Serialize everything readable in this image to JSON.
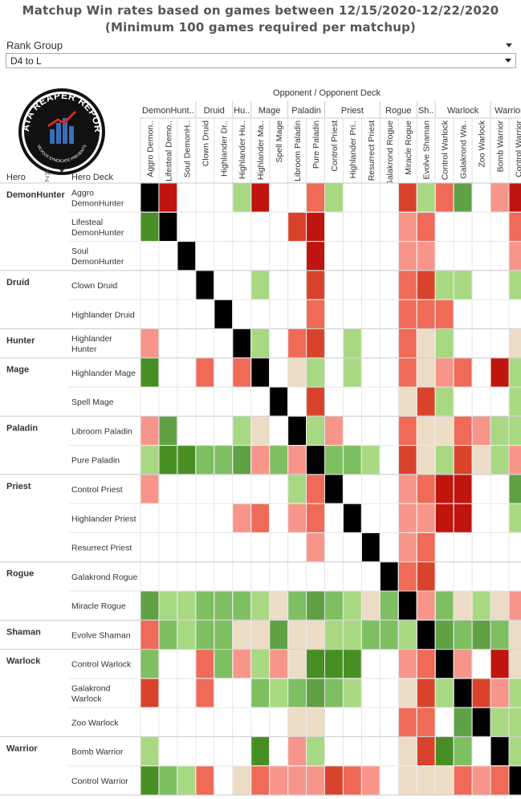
{
  "title_line1": "Matchup Win rates based on games between 12/15/2020-12/22/2020",
  "title_line2": "(Minimum 100 games required per matchup)",
  "rank_group": {
    "label": "Rank Group",
    "value": "D4 to L"
  },
  "logo": {
    "text": "DATA REAPER REPORT",
    "subtext": "VICIOUS SYNDICATE PRESENTS"
  },
  "opponent_title": "Opponent  /  Opponent Deck",
  "row_header_hero": "Hero",
  "row_header_deck": "Hero Deck",
  "sort_icon": "sort-descending-icon",
  "colors": {
    "black": "#000000",
    "strong_loss": "#c0140e",
    "loss": "#d9432c",
    "mild_loss": "#ef6a57",
    "slight_loss": "#f8958a",
    "even": "#ecdcc6",
    "slight_win": "#a9d883",
    "win": "#7ebf62",
    "strong_win": "#5fa144",
    "strongest_win": "#488f23"
  },
  "chart_data": {
    "type": "heatmap",
    "title": "Matchup Win rates based on games between 12/15/2020-12/22/2020 (Minimum 100 games required per matchup)",
    "col_group_label": "Opponent / Opponent Deck",
    "row_group_label": "Hero / Hero Deck",
    "col_groups": [
      {
        "name": "DemonHunt..",
        "span": 3
      },
      {
        "name": "Druid",
        "span": 2
      },
      {
        "name": "Hu..",
        "span": 1
      },
      {
        "name": "Mage",
        "span": 2
      },
      {
        "name": "Paladin",
        "span": 2
      },
      {
        "name": "Priest",
        "span": 3
      },
      {
        "name": "Rogue",
        "span": 2
      },
      {
        "name": "Sh..",
        "span": 1
      },
      {
        "name": "Warlock",
        "span": 3
      },
      {
        "name": "Warrior",
        "span": 2
      }
    ],
    "columns": [
      "Aggro Demon..",
      "Lifesteal Demo..",
      "Soul DemonH..",
      "Clown Druid",
      "Highlander Dr..",
      "Highlander Hu..",
      "Highlander Ma..",
      "Spell Mage",
      "Libroom Paladin",
      "Pure Paladin",
      "Control Priest",
      "Highlander Pri..",
      "Resurrect Priest",
      "Galakrond Rogue",
      "Miracle Rogue",
      "Evolve Shaman",
      "Control Warlock",
      "Galakrond Wa..",
      "Zoo Warlock",
      "Bomb Warrior",
      "Control Warrior"
    ],
    "row_groups": [
      {
        "name": "DemonHunter",
        "rows": [
          {
            "label": "Aggro DemonHunter",
            "lines": [
              "Aggro",
              "DemonHunter"
            ]
          },
          {
            "label": "Lifesteal DemonHunter",
            "lines": [
              "Lifesteal",
              "DemonHunter"
            ]
          },
          {
            "label": "Soul DemonHunter",
            "lines": [
              "Soul",
              "DemonHunter"
            ]
          }
        ]
      },
      {
        "name": "Druid",
        "rows": [
          {
            "label": "Clown Druid",
            "lines": [
              "Clown Druid"
            ]
          },
          {
            "label": "Highlander Druid",
            "lines": [
              "Highlander Druid"
            ]
          }
        ]
      },
      {
        "name": "Hunter",
        "rows": [
          {
            "label": "Highlander Hunter",
            "lines": [
              "Highlander",
              "Hunter"
            ]
          }
        ]
      },
      {
        "name": "Mage",
        "rows": [
          {
            "label": "Highlander Mage",
            "lines": [
              "Highlander Mage"
            ]
          },
          {
            "label": "Spell Mage",
            "lines": [
              "Spell Mage"
            ]
          }
        ]
      },
      {
        "name": "Paladin",
        "rows": [
          {
            "label": "Libroom Paladin",
            "lines": [
              "Libroom Paladin"
            ]
          },
          {
            "label": "Pure Paladin",
            "lines": [
              "Pure Paladin"
            ]
          }
        ]
      },
      {
        "name": "Priest",
        "rows": [
          {
            "label": "Control Priest",
            "lines": [
              "Control Priest"
            ]
          },
          {
            "label": "Highlander Priest",
            "lines": [
              "Highlander Priest"
            ]
          },
          {
            "label": "Resurrect Priest",
            "lines": [
              "Resurrect Priest"
            ]
          }
        ]
      },
      {
        "name": "Rogue",
        "rows": [
          {
            "label": "Galakrond Rogue",
            "lines": [
              "Galakrond Rogue"
            ]
          },
          {
            "label": "Miracle Rogue",
            "lines": [
              "Miracle Rogue"
            ]
          }
        ]
      },
      {
        "name": "Shaman",
        "rows": [
          {
            "label": "Evolve Shaman",
            "lines": [
              "Evolve Shaman"
            ]
          }
        ]
      },
      {
        "name": "Warlock",
        "rows": [
          {
            "label": "Control Warlock",
            "lines": [
              "Control Warlock"
            ]
          },
          {
            "label": "Galakrond Warlock",
            "lines": [
              "Galakrond",
              "Warlock"
            ]
          },
          {
            "label": "Zoo Warlock",
            "lines": [
              "Zoo Warlock"
            ]
          }
        ]
      },
      {
        "name": "Warrior",
        "rows": [
          {
            "label": "Bomb Warrior",
            "lines": [
              "Bomb Warrior"
            ]
          },
          {
            "label": "Control Warrior",
            "lines": [
              "Control Warrior"
            ]
          }
        ]
      }
    ],
    "legend": "none",
    "value_scale": "K = mirror (black), R = strong loss, L = loss, M = mild loss, S = slight loss, E = even, G = slight win, W = win, D = strong win, V = strongest win, . = insufficient games",
    "matrix": [
      "K R . . . G R . . M G . . . L G M D . S R",
      "V K . . . . . . L R . . . . S M . . . . M",
      ". . K . . . . . . R . . . . S S . . . . S",
      ". . . K . . G . . L . . . . M L G G . . G",
      ". . . . K . . . . M . . . . M M M . . . .",
      "S . . . . K G . M L . G . . M E G . . . E",
      "V . . M . M K . E G . G . . M E S M . R G",
      ". . . . . . . K . L . . . . E L G . . . G",
      "S D . . . G E . K G S . . . M E E M S G G",
      "G V V W W D S W S K W W G . L E G L E G S",
      "S . . . . . . . G M K . . . S M R R . . D",
      ". . . . . S M . S M . K . . S S R R . . G",
      ". . . . . . . . . S . . K . S M . . . . .",
      ". . . . . . . . . . . . . K M L . . . . .",
      "D G G W W W G E W D W G E W K S W E G E S",
      "M W G W W E E D E E G G W W G K D W D W E",
      "W . . M W S G S E V V V . . S M K S . R E",
      "L . . M . . W G W D W G . . E L G K L S G",
      ". . . . . . . . E E . . . . M M . D K G G",
      "G . . . . . V . S G . . . . E L V W . K G",
      "V W G M . E M S S S L M S . E E E M S M K"
    ]
  }
}
